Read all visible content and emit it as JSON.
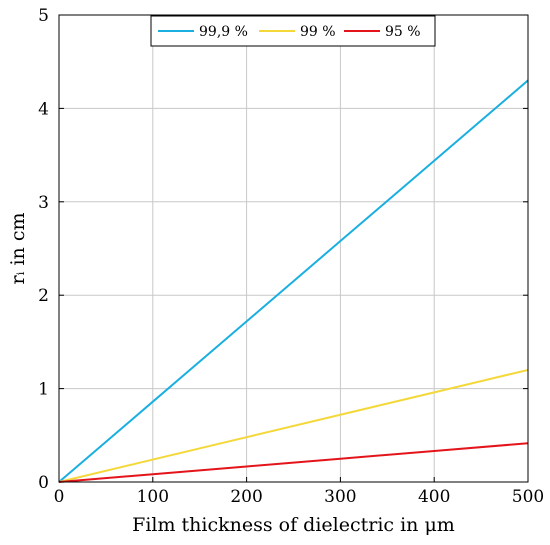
{
  "chart_data": {
    "type": "line",
    "xlabel": "Film thickness of dielectric in μm",
    "ylabel": "rᵢ in cm",
    "xlim": [
      0,
      500
    ],
    "ylim": [
      0,
      5
    ],
    "x_ticks": [
      0,
      100,
      200,
      300,
      400,
      500
    ],
    "y_ticks": [
      0,
      1,
      2,
      3,
      4,
      5
    ],
    "grid": true,
    "legend_position": "top-center",
    "series": [
      {
        "name": "99,9 %",
        "color": "#1aafe0",
        "x": [
          0,
          100,
          200,
          300,
          400,
          500
        ],
        "y": [
          0,
          0.86,
          1.72,
          2.58,
          3.44,
          4.3
        ]
      },
      {
        "name": "99 %",
        "color": "#f4d83a",
        "x": [
          0,
          100,
          200,
          300,
          400,
          500
        ],
        "y": [
          0,
          0.24,
          0.48,
          0.72,
          0.96,
          1.2
        ]
      },
      {
        "name": "95 %",
        "color": "#e4141b",
        "x": [
          0,
          100,
          200,
          300,
          400,
          500
        ],
        "y": [
          0,
          0.083,
          0.166,
          0.249,
          0.332,
          0.415
        ]
      }
    ]
  }
}
